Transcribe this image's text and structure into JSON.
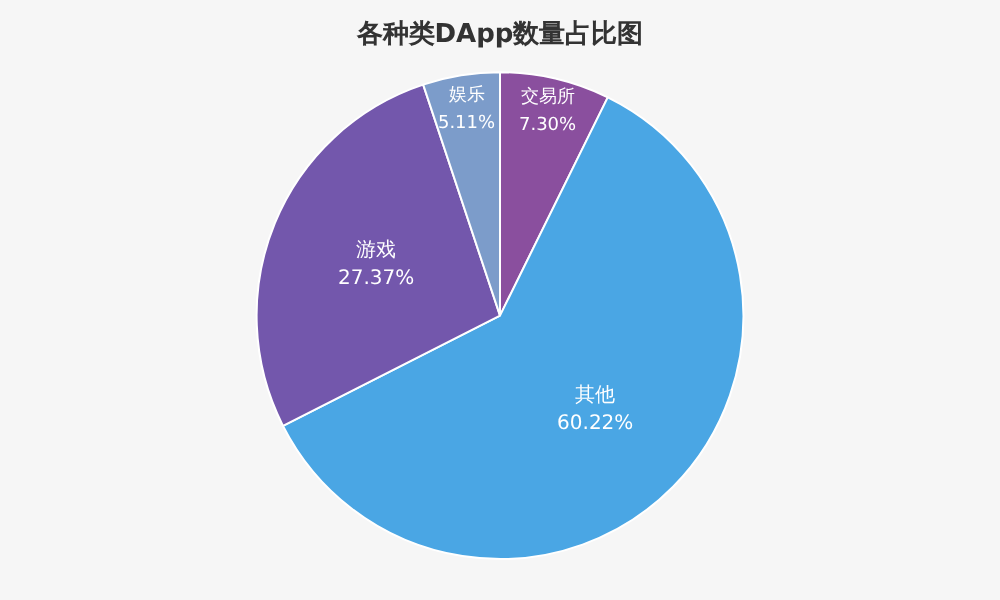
{
  "chart_data": {
    "type": "pie",
    "title": "各种类DApp数量占比图",
    "categories": [
      "交易所",
      "其他",
      "游戏",
      "娱乐"
    ],
    "values": [
      7.3,
      60.22,
      27.37,
      5.11
    ],
    "colors": [
      "#8a4f9e",
      "#4aa6e4",
      "#7357ac",
      "#7c9cca"
    ],
    "value_labels": [
      "7.30%",
      "60.22%",
      "27.37%",
      "5.11%"
    ],
    "legend": false
  }
}
